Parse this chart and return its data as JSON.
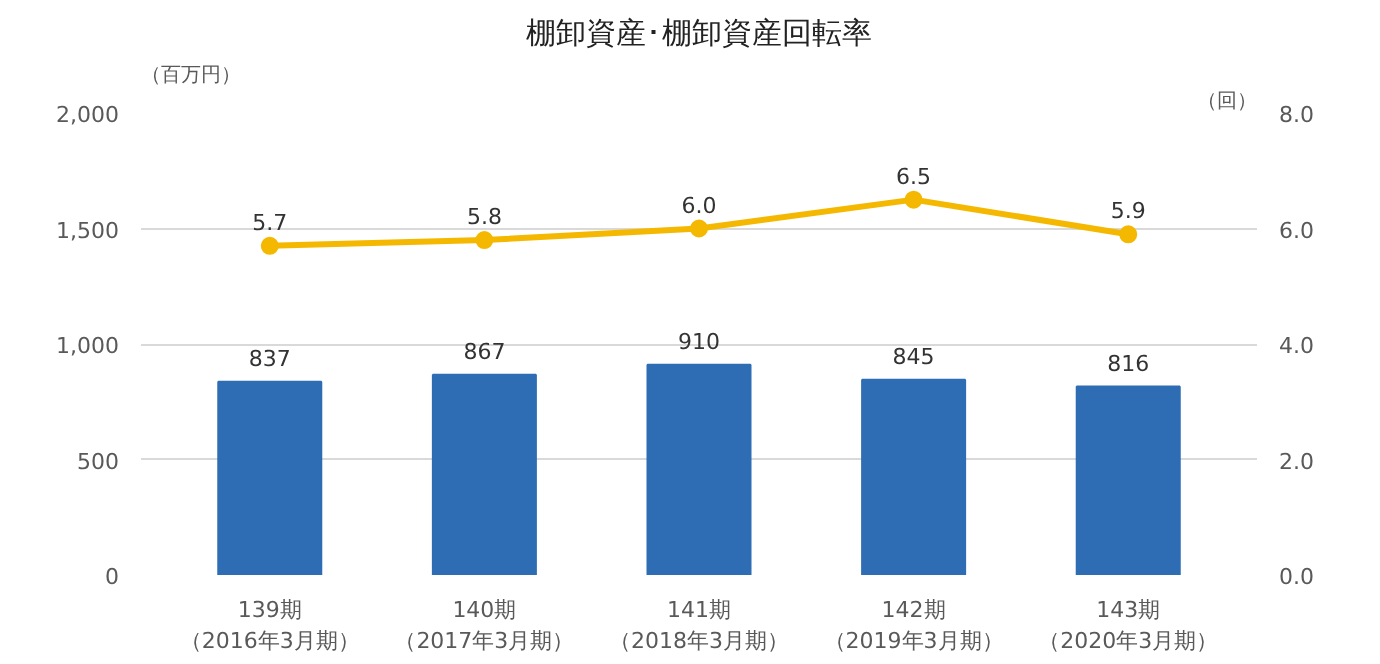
{
  "chart_data": {
    "type": "bar",
    "title": "棚卸資産･棚卸資産回転率",
    "ylabel": "（百万円）",
    "y2label": "（回）",
    "categories": [
      "139期（2016年3月期）",
      "140期（2017年3月期）",
      "141期（2018年3月期）",
      "142期（2019年3月期）",
      "143期（2020年3月期）"
    ],
    "series": [
      {
        "color": "#2e6db4",
        "values": [
          837,
          867,
          910,
          845,
          816
        ],
        "value_labels": [
          "837",
          "867",
          "910",
          "845",
          "816"
        ]
      },
      {
        "type": "line",
        "axis": "y2",
        "color": "#f5b800",
        "values": [
          5.7,
          5.8,
          6.0,
          6.5,
          5.9
        ],
        "marker": "circle",
        "value_labels": [
          "5.7",
          "5.8",
          "6.0",
          "6.5",
          "5.9"
        ]
      }
    ],
    "ylim": [
      0,
      2000
    ],
    "yticks": [
      0,
      500,
      {
        "value": 1000,
        "label": "1,000"
      },
      {
        "value": 1500,
        "label": "1,500"
      },
      {
        "value": 2000,
        "label": "2,000"
      }
    ],
    "y2lim": [
      0,
      8
    ],
    "y2ticks": [
      {
        "value": 0,
        "label": "0.0"
      },
      {
        "value": 2,
        "label": "2.0"
      },
      {
        "value": 4,
        "label": "4.0"
      },
      {
        "value": 6,
        "label": "6.0"
      },
      {
        "value": 8,
        "label": "8.0"
      }
    ],
    "grid": "y"
  }
}
